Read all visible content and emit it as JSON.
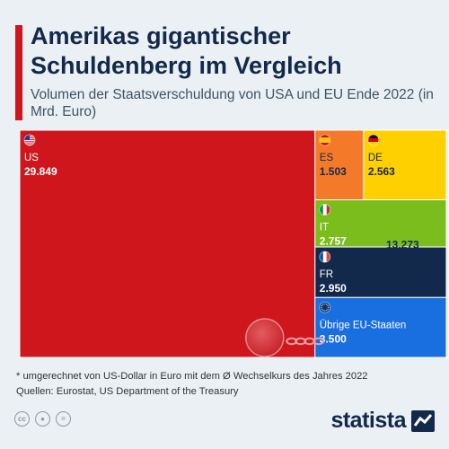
{
  "header": {
    "title": "Amerikas gigantischer Schuldenberg im Vergleich",
    "subtitle": "Volumen der Staatsverschuldung von USA und EU Ende 2022 (in Mrd. Euro)"
  },
  "chart_data": {
    "type": "treemap",
    "unit": "Mrd. Euro",
    "items": [
      {
        "label": "US",
        "value": 29849,
        "value_label": "29.849",
        "color": "#d0161d",
        "label_color": "#ffffff",
        "flag": "us-flag-icon"
      },
      {
        "label": "ES",
        "value": 1503,
        "value_label": "1.503",
        "color": "#f47a2a",
        "label_color": "#13294b",
        "flag": "spain-flag-icon"
      },
      {
        "label": "DE",
        "value": 2563,
        "value_label": "2.563",
        "color": "#ffd000",
        "label_color": "#13294b",
        "flag": "germany-flag-icon"
      },
      {
        "label": "IT",
        "value": 2757,
        "value_label": "2.757",
        "color": "#7cbd1e",
        "label_color": "#ffffff",
        "flag": "italy-flag-icon"
      },
      {
        "label": "FR",
        "value": 2950,
        "value_label": "2.950",
        "color": "#13294b",
        "label_color": "#ffffff",
        "flag": "france-flag-icon"
      },
      {
        "label": "Übrige EU-Staaten",
        "value": 3500,
        "value_label": "3.500",
        "color": "#1a6fe0",
        "label_color": "#ffffff",
        "flag": "eu-flag-icon"
      }
    ],
    "eu_total": {
      "value": 13273,
      "label": "13.273"
    }
  },
  "footer": {
    "note": "* umgerechnet von US-Dollar in Euro mit dem Ø Wechselkurs des Jahres 2022",
    "sources": "Quellen: Eurostat, US Department of the Treasury",
    "license_icons": [
      "cc-icon",
      "person-icon",
      "equals-icon"
    ],
    "brand": "statista"
  }
}
